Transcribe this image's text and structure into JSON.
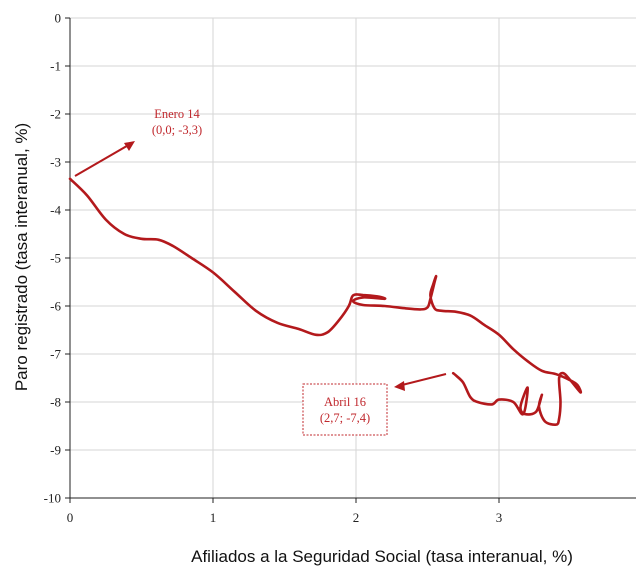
{
  "chart_data": {
    "type": "line",
    "title": "",
    "xlabel": "Afiliados a la Seguridad Social (tasa interanual, %)",
    "ylabel": "Paro registrado (tasa interanual, %)",
    "xlim": [
      0,
      4
    ],
    "ylim": [
      -10,
      0
    ],
    "x_ticks": [
      "0",
      "1",
      "2",
      "3"
    ],
    "y_ticks": [
      "0",
      "-1",
      "-2",
      "-3",
      "-4",
      "-5",
      "-6",
      "-7",
      "-8",
      "-9",
      "-10"
    ],
    "grid": true,
    "line_color": "#b3191c",
    "series": [
      {
        "x": [
          0.0,
          0.12,
          0.25,
          0.38,
          0.5,
          0.62,
          0.72,
          0.85,
          1.0,
          1.15,
          1.3,
          1.45,
          1.6,
          1.72,
          1.8,
          1.88,
          1.95,
          1.98,
          2.05,
          2.15,
          2.2,
          2.05,
          1.98,
          2.05,
          2.2,
          2.35,
          2.45,
          2.5,
          2.52,
          2.55,
          2.56,
          2.54,
          2.52,
          2.55,
          2.6,
          2.7,
          2.8,
          2.9,
          3.0,
          3.1,
          3.2,
          3.3,
          3.4,
          3.5,
          3.55,
          3.57,
          3.5,
          3.45,
          3.42,
          3.43,
          3.42,
          3.4,
          3.32,
          3.28,
          3.3,
          3.26,
          3.18,
          3.15,
          3.2,
          3.17,
          3.1,
          3.0,
          2.95,
          2.85,
          2.8,
          2.75,
          2.7,
          2.68
        ],
        "y": [
          -3.35,
          -3.7,
          -4.2,
          -4.5,
          -4.6,
          -4.62,
          -4.75,
          -5.0,
          -5.3,
          -5.7,
          -6.1,
          -6.35,
          -6.48,
          -6.6,
          -6.55,
          -6.3,
          -6.0,
          -5.78,
          -5.77,
          -5.8,
          -5.85,
          -5.82,
          -5.9,
          -5.98,
          -6.0,
          -6.05,
          -6.07,
          -6.03,
          -5.85,
          -5.5,
          -5.38,
          -5.55,
          -5.78,
          -6.05,
          -6.1,
          -6.12,
          -6.2,
          -6.4,
          -6.6,
          -6.9,
          -7.15,
          -7.35,
          -7.42,
          -7.55,
          -7.65,
          -7.8,
          -7.55,
          -7.4,
          -7.5,
          -8.0,
          -8.35,
          -8.47,
          -8.4,
          -8.1,
          -7.85,
          -8.2,
          -8.25,
          -8.1,
          -7.7,
          -8.25,
          -8.0,
          -7.95,
          -8.05,
          -8.0,
          -7.9,
          -7.6,
          -7.45,
          -7.4
        ]
      }
    ],
    "annotations": [
      {
        "line1": "Enero 14",
        "line2": "(0,0; -3,3)"
      },
      {
        "line1": "Abril 16",
        "line2": "(2,7; -7,4)"
      }
    ]
  }
}
